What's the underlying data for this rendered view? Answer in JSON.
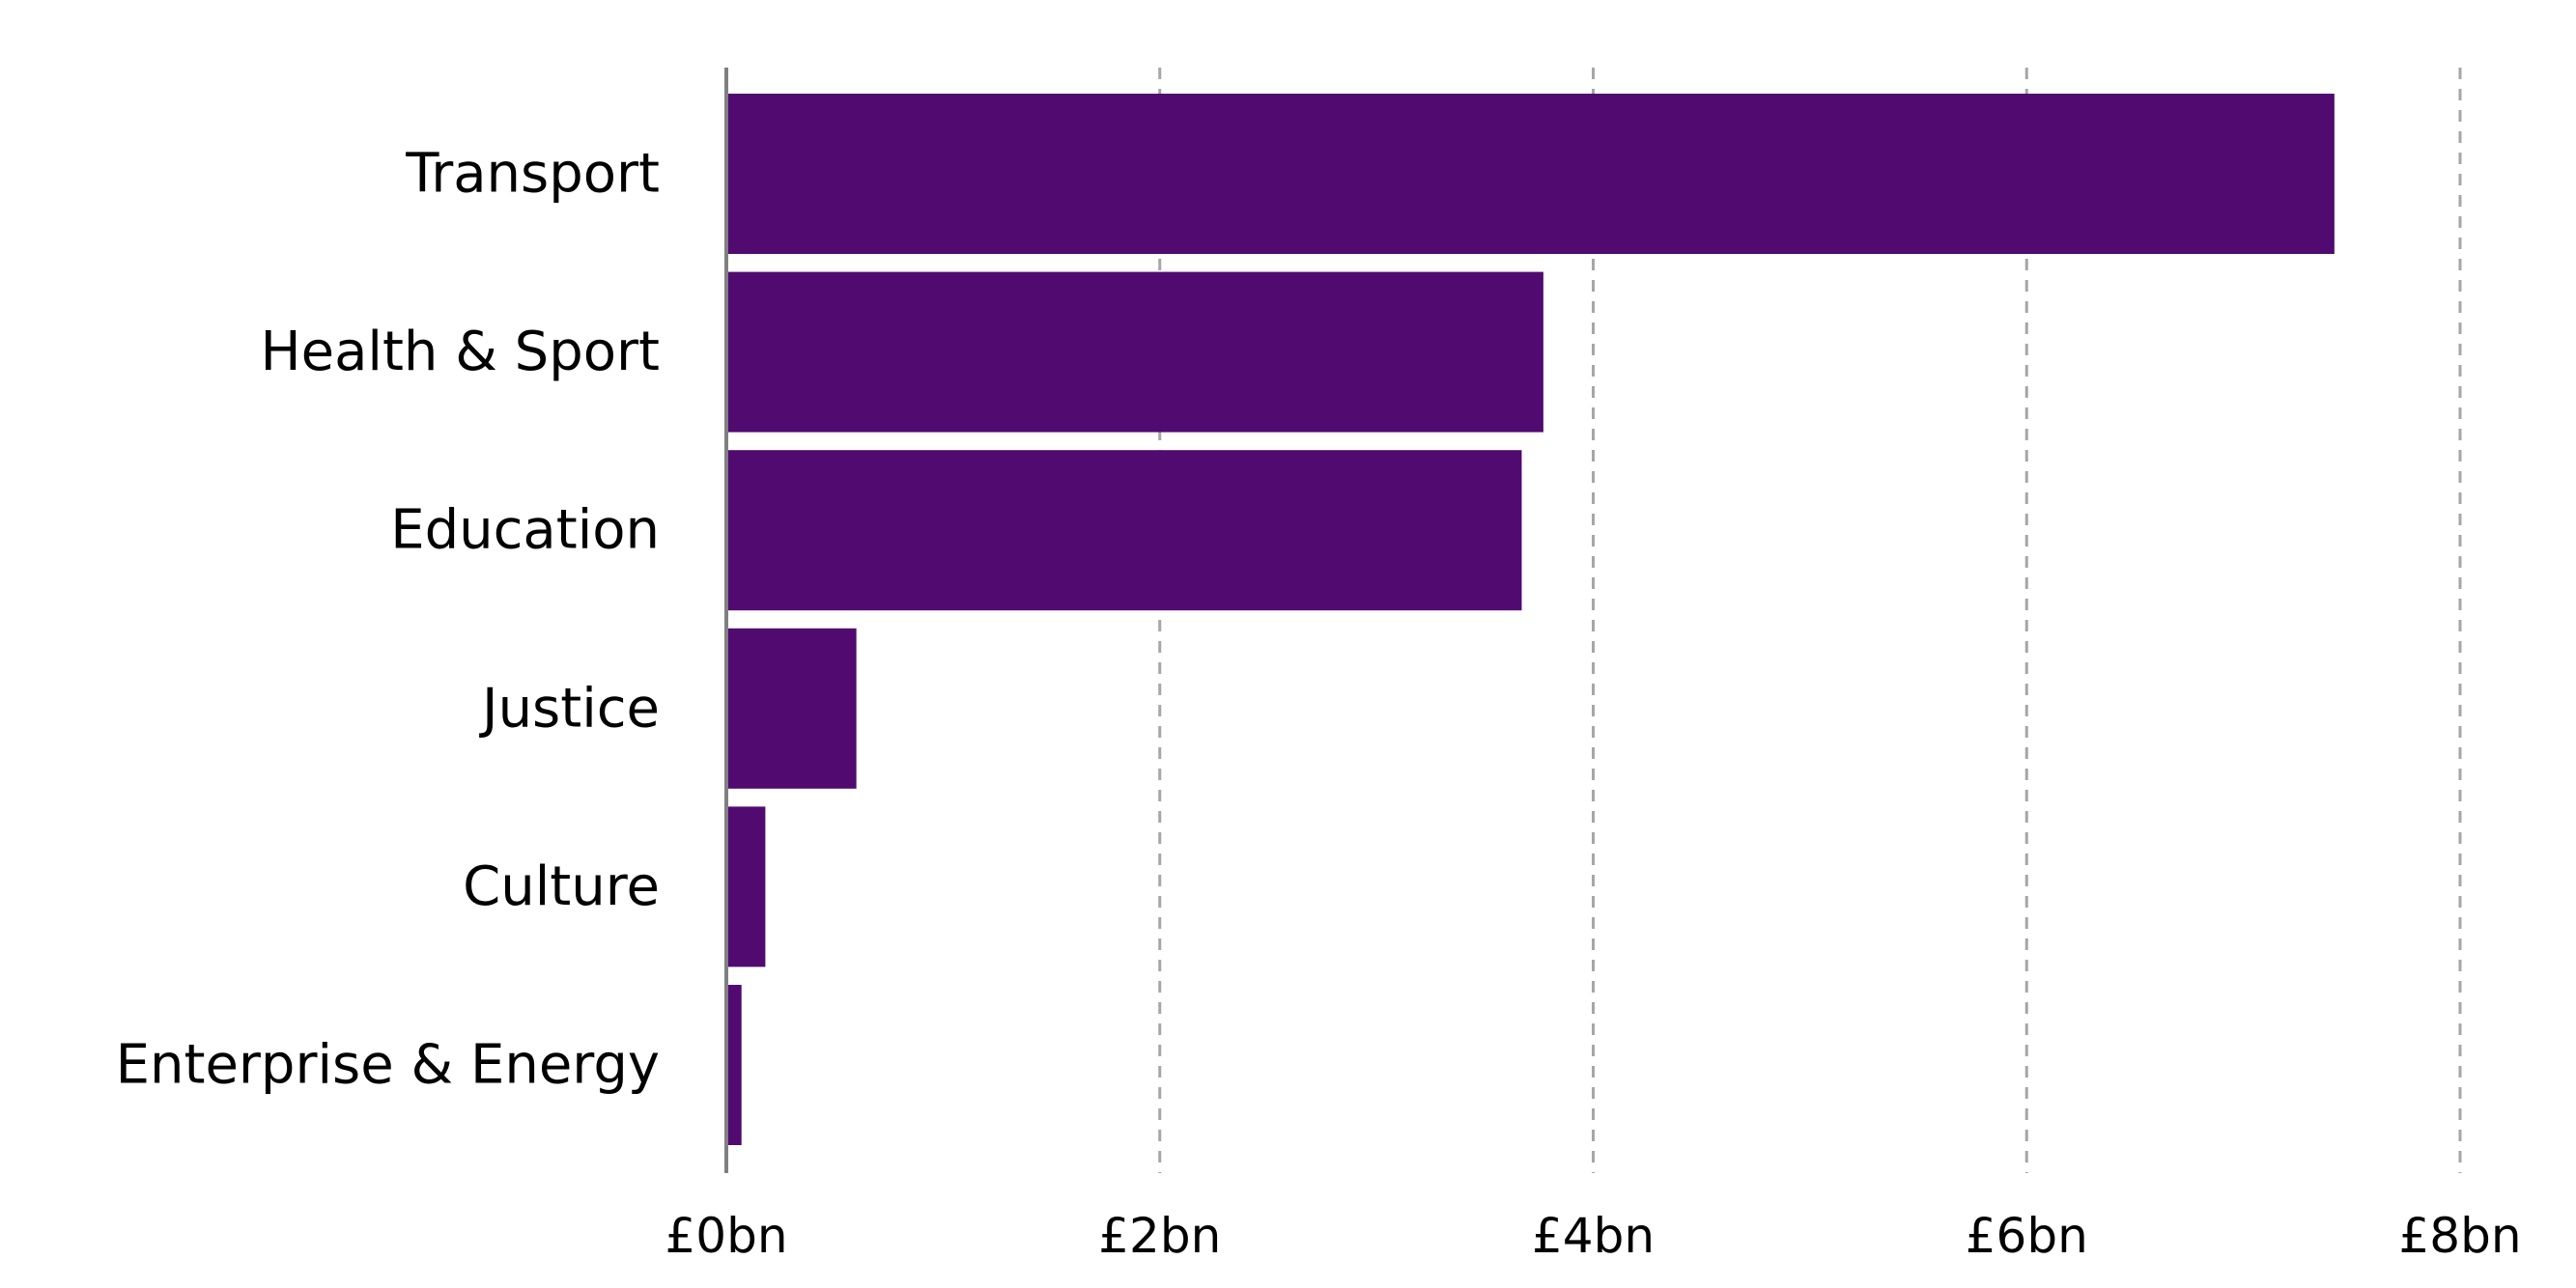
{
  "chart_data": {
    "type": "bar",
    "orientation": "horizontal",
    "categories": [
      "Transport",
      "Health & Sport",
      "Education",
      "Justice",
      "Culture",
      "Enterprise & Energy"
    ],
    "values": [
      7.42,
      3.77,
      3.67,
      0.6,
      0.18,
      0.07
    ],
    "xlim": [
      0,
      8
    ],
    "xticks": [
      0,
      2,
      4,
      6,
      8
    ],
    "xtick_labels": [
      "£0bn",
      "£2bn",
      "£4bn",
      "£6bn",
      "£8bn"
    ],
    "title": "",
    "xlabel": "",
    "ylabel": "",
    "grid": "vertical dashed",
    "legend": "none",
    "bar_color": "#510a70",
    "grid_color": "#a6a6a6",
    "axis_color": "#808080"
  }
}
